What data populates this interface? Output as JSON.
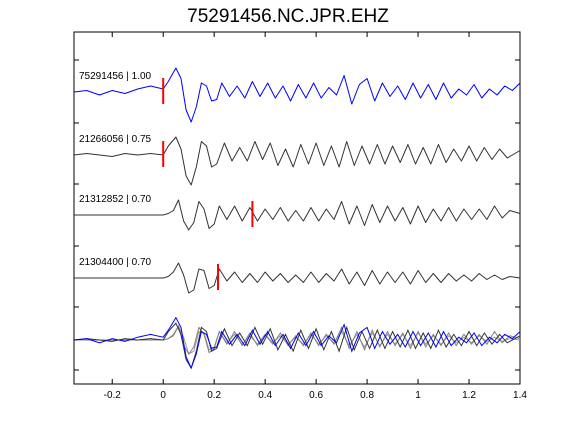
{
  "chart_data": {
    "type": "line",
    "title": "75291456.NC.JPR.EHZ",
    "xlabel": "",
    "ylabel": "",
    "xlim": [
      -0.35,
      1.4
    ],
    "xticks": [
      -0.2,
      0,
      0.2,
      0.4,
      0.6,
      0.8,
      1,
      1.2,
      1.4
    ],
    "xtick_labels": [
      "-0.2",
      "0",
      "0.2",
      "0.4",
      "0.6",
      "0.8",
      "1",
      "1.2",
      "1.4"
    ],
    "grid": false,
    "colors": {
      "primary": "#0000ff",
      "secondary": "#333333",
      "overlay_gray": "#808080",
      "pick": "#ff0000"
    },
    "traces": [
      {
        "label": "75291456 | 1.00",
        "color": "#0000ff",
        "pick_time": 0.0,
        "points": [
          [
            -0.35,
            0.0
          ],
          [
            -0.3,
            0.05
          ],
          [
            -0.25,
            -0.1
          ],
          [
            -0.2,
            0.05
          ],
          [
            -0.15,
            -0.05
          ],
          [
            -0.1,
            0.1
          ],
          [
            -0.05,
            0.2
          ],
          [
            0.0,
            0.1
          ],
          [
            0.02,
            0.35
          ],
          [
            0.05,
            0.8
          ],
          [
            0.07,
            0.45
          ],
          [
            0.09,
            -0.6
          ],
          [
            0.11,
            -1.0
          ],
          [
            0.13,
            -0.5
          ],
          [
            0.15,
            0.3
          ],
          [
            0.17,
            0.2
          ],
          [
            0.19,
            -0.3
          ],
          [
            0.21,
            -0.25
          ],
          [
            0.23,
            0.3
          ],
          [
            0.26,
            -0.15
          ],
          [
            0.29,
            0.2
          ],
          [
            0.32,
            -0.2
          ],
          [
            0.35,
            0.35
          ],
          [
            0.38,
            -0.15
          ],
          [
            0.41,
            0.3
          ],
          [
            0.44,
            -0.2
          ],
          [
            0.47,
            0.2
          ],
          [
            0.5,
            -0.3
          ],
          [
            0.53,
            0.25
          ],
          [
            0.56,
            -0.2
          ],
          [
            0.59,
            0.3
          ],
          [
            0.62,
            -0.2
          ],
          [
            0.65,
            0.15
          ],
          [
            0.68,
            -0.1
          ],
          [
            0.71,
            0.55
          ],
          [
            0.74,
            -0.4
          ],
          [
            0.77,
            0.25
          ],
          [
            0.8,
            0.45
          ],
          [
            0.83,
            -0.3
          ],
          [
            0.86,
            0.3
          ],
          [
            0.89,
            -0.15
          ],
          [
            0.92,
            0.2
          ],
          [
            0.95,
            -0.25
          ],
          [
            0.98,
            0.3
          ],
          [
            1.01,
            -0.2
          ],
          [
            1.04,
            0.25
          ],
          [
            1.07,
            -0.25
          ],
          [
            1.1,
            0.3
          ],
          [
            1.13,
            -0.2
          ],
          [
            1.16,
            0.1
          ],
          [
            1.19,
            -0.1
          ],
          [
            1.22,
            0.25
          ],
          [
            1.25,
            -0.2
          ],
          [
            1.28,
            0.1
          ],
          [
            1.31,
            -0.1
          ],
          [
            1.34,
            0.2
          ],
          [
            1.37,
            0.05
          ],
          [
            1.4,
            0.3
          ]
        ]
      },
      {
        "label": "21266056 | 0.75",
        "color": "#333333",
        "pick_time": 0.0,
        "points": [
          [
            -0.35,
            0.0
          ],
          [
            -0.3,
            0.05
          ],
          [
            -0.25,
            0.0
          ],
          [
            -0.2,
            -0.05
          ],
          [
            -0.15,
            0.05
          ],
          [
            -0.1,
            0.0
          ],
          [
            -0.05,
            0.05
          ],
          [
            0.0,
            0.0
          ],
          [
            0.02,
            0.3
          ],
          [
            0.05,
            0.6
          ],
          [
            0.07,
            0.2
          ],
          [
            0.09,
            -0.7
          ],
          [
            0.11,
            -1.0
          ],
          [
            0.13,
            -0.4
          ],
          [
            0.15,
            0.45
          ],
          [
            0.17,
            0.3
          ],
          [
            0.19,
            -0.4
          ],
          [
            0.21,
            -0.3
          ],
          [
            0.24,
            0.4
          ],
          [
            0.27,
            -0.2
          ],
          [
            0.3,
            0.25
          ],
          [
            0.33,
            -0.2
          ],
          [
            0.36,
            0.45
          ],
          [
            0.39,
            -0.15
          ],
          [
            0.42,
            0.4
          ],
          [
            0.45,
            -0.35
          ],
          [
            0.48,
            0.2
          ],
          [
            0.51,
            -0.4
          ],
          [
            0.54,
            0.35
          ],
          [
            0.57,
            -0.3
          ],
          [
            0.6,
            0.4
          ],
          [
            0.63,
            -0.35
          ],
          [
            0.66,
            0.3
          ],
          [
            0.69,
            -0.4
          ],
          [
            0.72,
            0.45
          ],
          [
            0.75,
            -0.35
          ],
          [
            0.78,
            0.3
          ],
          [
            0.81,
            -0.3
          ],
          [
            0.84,
            0.35
          ],
          [
            0.87,
            -0.3
          ],
          [
            0.9,
            0.3
          ],
          [
            0.93,
            -0.25
          ],
          [
            0.96,
            0.35
          ],
          [
            0.99,
            -0.3
          ],
          [
            1.02,
            0.25
          ],
          [
            1.05,
            -0.3
          ],
          [
            1.08,
            0.35
          ],
          [
            1.11,
            -0.25
          ],
          [
            1.14,
            0.2
          ],
          [
            1.17,
            -0.2
          ],
          [
            1.2,
            0.3
          ],
          [
            1.23,
            -0.2
          ],
          [
            1.26,
            0.25
          ],
          [
            1.29,
            -0.15
          ],
          [
            1.32,
            0.2
          ],
          [
            1.35,
            -0.1
          ],
          [
            1.4,
            0.15
          ]
        ]
      },
      {
        "label": "21312852 | 0.70",
        "color": "#333333",
        "pick_time": 0.35,
        "points": [
          [
            -0.35,
            0.0
          ],
          [
            -0.25,
            0.0
          ],
          [
            -0.15,
            0.0
          ],
          [
            -0.05,
            0.0
          ],
          [
            0.0,
            0.0
          ],
          [
            0.02,
            0.05
          ],
          [
            0.04,
            0.15
          ],
          [
            0.06,
            0.5
          ],
          [
            0.08,
            -0.2
          ],
          [
            0.1,
            -0.5
          ],
          [
            0.12,
            -0.25
          ],
          [
            0.14,
            0.45
          ],
          [
            0.16,
            0.2
          ],
          [
            0.18,
            -0.45
          ],
          [
            0.2,
            -0.3
          ],
          [
            0.22,
            0.3
          ],
          [
            0.25,
            -0.15
          ],
          [
            0.28,
            0.3
          ],
          [
            0.31,
            -0.2
          ],
          [
            0.34,
            0.25
          ],
          [
            0.37,
            -0.2
          ],
          [
            0.4,
            0.2
          ],
          [
            0.43,
            -0.15
          ],
          [
            0.46,
            0.25
          ],
          [
            0.49,
            -0.2
          ],
          [
            0.52,
            0.15
          ],
          [
            0.55,
            -0.2
          ],
          [
            0.58,
            0.25
          ],
          [
            0.61,
            -0.2
          ],
          [
            0.64,
            0.2
          ],
          [
            0.67,
            -0.15
          ],
          [
            0.7,
            0.45
          ],
          [
            0.73,
            -0.3
          ],
          [
            0.76,
            0.3
          ],
          [
            0.79,
            -0.35
          ],
          [
            0.82,
            0.35
          ],
          [
            0.85,
            -0.25
          ],
          [
            0.88,
            0.3
          ],
          [
            0.91,
            -0.2
          ],
          [
            0.94,
            0.25
          ],
          [
            0.97,
            -0.3
          ],
          [
            1.0,
            0.3
          ],
          [
            1.03,
            -0.25
          ],
          [
            1.06,
            0.2
          ],
          [
            1.09,
            -0.2
          ],
          [
            1.12,
            0.25
          ],
          [
            1.15,
            -0.2
          ],
          [
            1.18,
            0.2
          ],
          [
            1.21,
            -0.15
          ],
          [
            1.24,
            0.2
          ],
          [
            1.27,
            -0.15
          ],
          [
            1.3,
            0.3
          ],
          [
            1.33,
            -0.1
          ],
          [
            1.36,
            0.15
          ],
          [
            1.4,
            0.05
          ]
        ]
      },
      {
        "label": "21304400 | 0.70",
        "color": "#333333",
        "pick_time": 0.215,
        "points": [
          [
            -0.35,
            0.0
          ],
          [
            -0.25,
            0.0
          ],
          [
            -0.15,
            0.0
          ],
          [
            -0.05,
            0.0
          ],
          [
            0.0,
            0.0
          ],
          [
            0.02,
            0.05
          ],
          [
            0.04,
            0.2
          ],
          [
            0.06,
            0.5
          ],
          [
            0.08,
            0.1
          ],
          [
            0.1,
            -0.5
          ],
          [
            0.12,
            -0.4
          ],
          [
            0.14,
            0.3
          ],
          [
            0.16,
            0.25
          ],
          [
            0.18,
            -0.35
          ],
          [
            0.2,
            -0.25
          ],
          [
            0.22,
            0.3
          ],
          [
            0.25,
            -0.1
          ],
          [
            0.28,
            0.2
          ],
          [
            0.31,
            -0.15
          ],
          [
            0.34,
            0.15
          ],
          [
            0.37,
            -0.15
          ],
          [
            0.4,
            0.2
          ],
          [
            0.43,
            -0.1
          ],
          [
            0.46,
            0.15
          ],
          [
            0.49,
            -0.15
          ],
          [
            0.52,
            0.1
          ],
          [
            0.55,
            -0.15
          ],
          [
            0.58,
            0.2
          ],
          [
            0.61,
            -0.15
          ],
          [
            0.64,
            0.15
          ],
          [
            0.67,
            -0.1
          ],
          [
            0.7,
            0.3
          ],
          [
            0.73,
            -0.2
          ],
          [
            0.76,
            0.2
          ],
          [
            0.79,
            -0.25
          ],
          [
            0.82,
            0.25
          ],
          [
            0.85,
            -0.2
          ],
          [
            0.88,
            0.2
          ],
          [
            0.91,
            -0.15
          ],
          [
            0.94,
            0.2
          ],
          [
            0.97,
            -0.2
          ],
          [
            1.0,
            0.25
          ],
          [
            1.03,
            -0.15
          ],
          [
            1.06,
            0.15
          ],
          [
            1.09,
            -0.15
          ],
          [
            1.12,
            0.15
          ],
          [
            1.15,
            -0.1
          ],
          [
            1.18,
            0.1
          ],
          [
            1.21,
            -0.1
          ],
          [
            1.24,
            0.15
          ],
          [
            1.27,
            -0.05
          ],
          [
            1.3,
            0.1
          ],
          [
            1.33,
            -0.05
          ],
          [
            1.36,
            0.05
          ],
          [
            1.4,
            0.0
          ]
        ]
      }
    ],
    "overlay": {
      "description_visible": false,
      "series_colors": [
        "#0000ff",
        "#333333",
        "#808080",
        "#999999"
      ]
    }
  }
}
